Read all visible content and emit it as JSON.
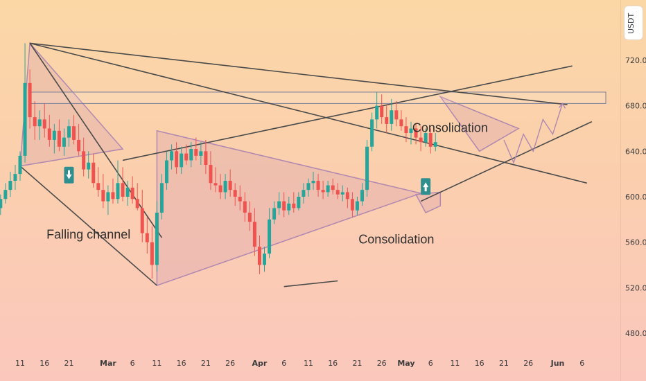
{
  "chart_data": {
    "type": "candlestick",
    "title": "",
    "xlabel": "",
    "ylabel": "",
    "unit": "USDT",
    "ylim": [
      470,
      745
    ],
    "y_ticks": [
      "720.00",
      "680.00",
      "640.00",
      "600.00",
      "560.00",
      "520.00",
      "480.00"
    ],
    "y_tick_values": [
      720,
      680,
      640,
      600,
      560,
      520,
      480
    ],
    "x_ticks": [
      {
        "label": "11",
        "day": 11
      },
      {
        "label": "16",
        "day": 16
      },
      {
        "label": "21",
        "day": 21
      },
      {
        "label": "Mar",
        "day": 29,
        "bold": true
      },
      {
        "label": "6",
        "day": 34
      },
      {
        "label": "11",
        "day": 39
      },
      {
        "label": "16",
        "day": 44
      },
      {
        "label": "21",
        "day": 49
      },
      {
        "label": "26",
        "day": 54
      },
      {
        "label": "Apr",
        "day": 60,
        "bold": true
      },
      {
        "label": "6",
        "day": 65
      },
      {
        "label": "11",
        "day": 70
      },
      {
        "label": "16",
        "day": 75
      },
      {
        "label": "21",
        "day": 80
      },
      {
        "label": "26",
        "day": 85
      },
      {
        "label": "May",
        "day": 90,
        "bold": true
      },
      {
        "label": "6",
        "day": 95
      },
      {
        "label": "11",
        "day": 100
      },
      {
        "label": "16",
        "day": 105
      },
      {
        "label": "21",
        "day": 110
      },
      {
        "label": "26",
        "day": 115
      },
      {
        "label": "Jun",
        "day": 121,
        "bold": true
      },
      {
        "label": "6",
        "day": 126
      }
    ],
    "price_path": [
      [
        7,
        590
      ],
      [
        8,
        612
      ],
      [
        9,
        605
      ],
      [
        10,
        625
      ],
      [
        11,
        618
      ],
      [
        12,
        645
      ],
      [
        13,
        735
      ],
      [
        14,
        680
      ],
      [
        15,
        665
      ],
      [
        16,
        672
      ],
      [
        17,
        660
      ],
      [
        18,
        668
      ],
      [
        19,
        652
      ],
      [
        20,
        662
      ],
      [
        21,
        648
      ],
      [
        22,
        664
      ],
      [
        23,
        645
      ],
      [
        24,
        628
      ],
      [
        25,
        622
      ],
      [
        26,
        612
      ],
      [
        27,
        604
      ],
      [
        28,
        592
      ],
      [
        29,
        604
      ],
      [
        30,
        594
      ],
      [
        31,
        632
      ],
      [
        32,
        598
      ],
      [
        33,
        610
      ],
      [
        34,
        604
      ],
      [
        35,
        592
      ],
      [
        36,
        572
      ],
      [
        37,
        558
      ],
      [
        38,
        530
      ],
      [
        39,
        585
      ],
      [
        40,
        618
      ],
      [
        41,
        636
      ],
      [
        42,
        644
      ],
      [
        43,
        625
      ],
      [
        44,
        640
      ],
      [
        45,
        635
      ],
      [
        46,
        646
      ],
      [
        47,
        639
      ],
      [
        48,
        644
      ],
      [
        49,
        632
      ],
      [
        50,
        612
      ],
      [
        51,
        608
      ],
      [
        52,
        604
      ],
      [
        53,
        618
      ],
      [
        54,
        608
      ],
      [
        55,
        600
      ],
      [
        56,
        604
      ],
      [
        57,
        590
      ],
      [
        58,
        582
      ],
      [
        59,
        570
      ],
      [
        60,
        548
      ],
      [
        61,
        538
      ],
      [
        62,
        578
      ],
      [
        63,
        584
      ],
      [
        64,
        596
      ],
      [
        65,
        590
      ],
      [
        66,
        594
      ],
      [
        67,
        588
      ],
      [
        68,
        596
      ],
      [
        69,
        604
      ],
      [
        70,
        610
      ],
      [
        71,
        614
      ],
      [
        72,
        612
      ],
      [
        73,
        605
      ],
      [
        74,
        610
      ],
      [
        75,
        608
      ],
      [
        76,
        606
      ],
      [
        77,
        602
      ],
      [
        78,
        604
      ],
      [
        79,
        596
      ],
      [
        80,
        586
      ],
      [
        81,
        596
      ],
      [
        82,
        605
      ],
      [
        83,
        650
      ],
      [
        84,
        668
      ],
      [
        85,
        684
      ],
      [
        86,
        672
      ],
      [
        87,
        664
      ],
      [
        88,
        680
      ],
      [
        89,
        672
      ],
      [
        90,
        666
      ],
      [
        91,
        660
      ],
      [
        92,
        660
      ],
      [
        93,
        652
      ],
      [
        94,
        655
      ],
      [
        95,
        650
      ],
      [
        96,
        648
      ]
    ],
    "candles": [
      [
        590,
        602,
        584,
        598
      ],
      [
        598,
        612,
        594,
        606
      ],
      [
        606,
        622,
        600,
        614
      ],
      [
        614,
        628,
        606,
        620
      ],
      [
        620,
        640,
        614,
        636
      ],
      [
        636,
        735,
        630,
        700
      ],
      [
        700,
        712,
        660,
        670
      ],
      [
        670,
        684,
        650,
        662
      ],
      [
        662,
        676,
        650,
        668
      ],
      [
        668,
        682,
        652,
        660
      ],
      [
        660,
        672,
        644,
        650
      ],
      [
        650,
        664,
        638,
        658
      ],
      [
        658,
        668,
        640,
        644
      ],
      [
        644,
        660,
        636,
        652
      ],
      [
        652,
        668,
        644,
        662
      ],
      [
        662,
        672,
        646,
        650
      ],
      [
        650,
        664,
        636,
        640
      ],
      [
        640,
        652,
        618,
        624
      ],
      [
        624,
        640,
        616,
        630
      ],
      [
        630,
        638,
        608,
        612
      ],
      [
        612,
        626,
        600,
        606
      ],
      [
        606,
        620,
        590,
        596
      ],
      [
        596,
        610,
        584,
        604
      ],
      [
        604,
        616,
        594,
        598
      ],
      [
        598,
        632,
        594,
        612
      ],
      [
        612,
        626,
        596,
        600
      ],
      [
        600,
        614,
        592,
        608
      ],
      [
        608,
        618,
        594,
        598
      ],
      [
        598,
        612,
        588,
        590
      ],
      [
        590,
        606,
        560,
        568
      ],
      [
        568,
        582,
        550,
        560
      ],
      [
        560,
        574,
        528,
        540
      ],
      [
        540,
        596,
        534,
        586
      ],
      [
        586,
        620,
        580,
        612
      ],
      [
        612,
        640,
        606,
        632
      ],
      [
        632,
        646,
        624,
        640
      ],
      [
        640,
        648,
        620,
        626
      ],
      [
        626,
        644,
        620,
        638
      ],
      [
        638,
        646,
        628,
        632
      ],
      [
        632,
        648,
        626,
        642
      ],
      [
        642,
        652,
        632,
        636
      ],
      [
        636,
        648,
        628,
        640
      ],
      [
        640,
        650,
        620,
        628
      ],
      [
        628,
        640,
        606,
        612
      ],
      [
        612,
        626,
        604,
        610
      ],
      [
        610,
        620,
        598,
        604
      ],
      [
        604,
        620,
        598,
        614
      ],
      [
        614,
        624,
        600,
        606
      ],
      [
        606,
        612,
        592,
        600
      ],
      [
        600,
        610,
        588,
        596
      ],
      [
        596,
        604,
        578,
        586
      ],
      [
        586,
        596,
        570,
        578
      ],
      [
        578,
        590,
        548,
        556
      ],
      [
        556,
        566,
        532,
        540
      ],
      [
        540,
        556,
        534,
        550
      ],
      [
        550,
        590,
        546,
        580
      ],
      [
        580,
        596,
        576,
        590
      ],
      [
        590,
        604,
        584,
        596
      ],
      [
        596,
        604,
        582,
        588
      ],
      [
        588,
        600,
        584,
        594
      ],
      [
        594,
        604,
        586,
        590
      ],
      [
        590,
        604,
        588,
        600
      ],
      [
        600,
        612,
        594,
        606
      ],
      [
        606,
        616,
        600,
        612
      ],
      [
        612,
        622,
        606,
        614
      ],
      [
        614,
        620,
        600,
        606
      ],
      [
        606,
        614,
        598,
        604
      ],
      [
        604,
        614,
        600,
        610
      ],
      [
        610,
        616,
        602,
        606
      ],
      [
        606,
        612,
        598,
        602
      ],
      [
        602,
        610,
        596,
        604
      ],
      [
        604,
        608,
        590,
        598
      ],
      [
        598,
        604,
        582,
        588
      ],
      [
        588,
        600,
        584,
        596
      ],
      [
        596,
        612,
        592,
        606
      ],
      [
        606,
        650,
        600,
        644
      ],
      [
        644,
        674,
        640,
        668
      ],
      [
        668,
        692,
        660,
        680
      ],
      [
        680,
        690,
        664,
        670
      ],
      [
        670,
        680,
        656,
        664
      ],
      [
        664,
        686,
        658,
        676
      ],
      [
        676,
        684,
        662,
        668
      ],
      [
        668,
        676,
        658,
        662
      ],
      [
        662,
        670,
        648,
        656
      ],
      [
        656,
        666,
        646,
        660
      ],
      [
        660,
        664,
        646,
        652
      ],
      [
        652,
        662,
        640,
        648
      ],
      [
        648,
        660,
        644,
        656
      ],
      [
        656,
        660,
        638,
        644
      ],
      [
        644,
        656,
        640,
        648
      ]
    ],
    "annotations": [
      {
        "text": "Falling channel",
        "day": 25,
        "price": 563
      },
      {
        "text": "Consolidation",
        "day": 99,
        "price": 657
      },
      {
        "text": "Consolidation",
        "day": 88,
        "price": 559
      }
    ],
    "signals": [
      {
        "type": "sell",
        "day": 21,
        "price": 619
      },
      {
        "type": "buy",
        "day": 94,
        "price": 609
      }
    ],
    "horizontal_zone": {
      "from": 682,
      "to": 692
    },
    "colors": {
      "up": "#26a69a",
      "down": "#ef5350",
      "line": "#4a4a4a",
      "pattern": "#b088b0",
      "pattern_fill": "rgba(190,120,170,0.18)",
      "signal": "#2f8f8f"
    }
  }
}
